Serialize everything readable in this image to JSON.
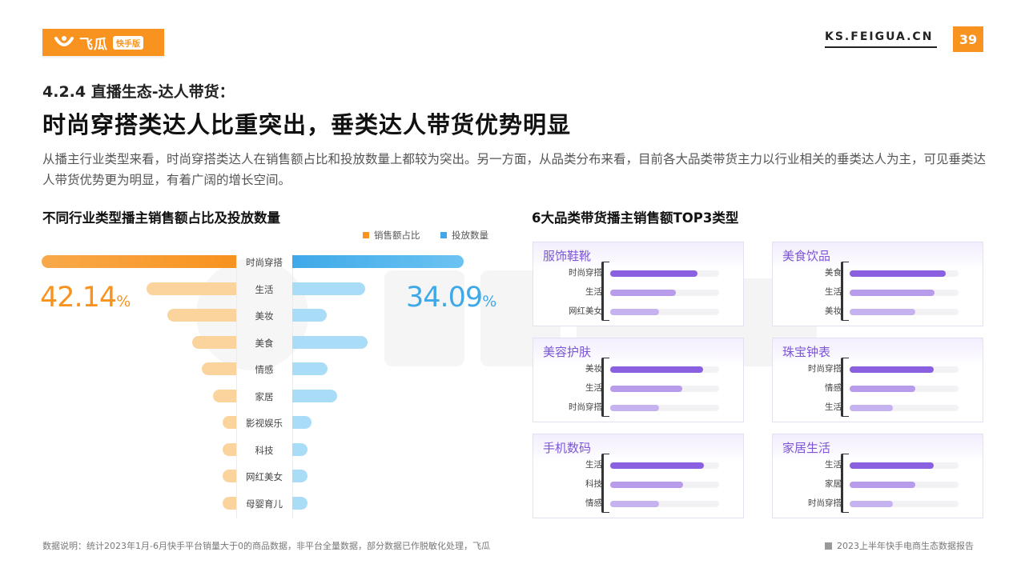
{
  "header": {
    "logo_text": "飞瓜",
    "logo_badge": "快手版",
    "site": "KS.FEIGUA.CN",
    "page_number": "39"
  },
  "section": "4.2.4 直播生态-达人带货：",
  "headline": "时尚穿搭类达人比重突出，垂类达人带货优势明显",
  "description": "从播主行业类型来看，时尚穿搭类达人在销售额占比和投放数量上都较为突出。另一方面，从品类分布来看，目前各大品类带货主力以行业相关的垂类达人为主，可见垂类达人带货优势更为明显，有着广阔的增长空间。",
  "left_chart": {
    "title": "不同行业类型播主销售额占比及投放数量",
    "legend": {
      "sales_label": "销售额占比",
      "count_label": "投放数量"
    },
    "highlight_sales_value": "42.14",
    "highlight_sales_unit": "%",
    "highlight_count_value": "34.09",
    "highlight_count_unit": "%"
  },
  "right_chart": {
    "title": "6大品类带货播主销售额TOP3类型"
  },
  "colors": {
    "orange": "#f7931e",
    "orange_light": "#fbd39c",
    "blue": "#3fa9e8",
    "blue_light": "#a9dcf7",
    "purple_dark": "#8a5fe0",
    "purple_mid": "#b99bec",
    "purple_light": "#c7b2f0"
  },
  "chart_data": [
    {
      "type": "bar",
      "title": "不同行业类型播主销售额占比及投放数量",
      "categories": [
        "时尚穿搭",
        "生活",
        "美妆",
        "美食",
        "情感",
        "家居",
        "影视娱乐",
        "科技",
        "网红美女",
        "母婴育儿"
      ],
      "series": [
        {
          "name": "销售额占比",
          "values": [
            42.14,
            19.5,
            15.0,
            9.5,
            7.5,
            5.0,
            3.0,
            3.0,
            3.0,
            3.0
          ]
        },
        {
          "name": "投放数量",
          "values": [
            34.09,
            14.5,
            6.8,
            15.0,
            7.0,
            9.0,
            3.8,
            3.0,
            3.0,
            3.0
          ]
        }
      ]
    },
    {
      "type": "bar",
      "title": "6大品类带货播主销售额TOP3类型",
      "panels": [
        {
          "name": "服饰鞋靴",
          "categories": [
            "时尚穿搭",
            "生活",
            "网红美女"
          ],
          "values": [
            0.8,
            0.6,
            0.45
          ]
        },
        {
          "name": "美食饮品",
          "categories": [
            "美食",
            "生活",
            "美妆"
          ],
          "values": [
            0.88,
            0.78,
            0.6
          ]
        },
        {
          "name": "美容护肤",
          "categories": [
            "美妆",
            "生活",
            "时尚穿搭"
          ],
          "values": [
            0.85,
            0.66,
            0.45
          ]
        },
        {
          "name": "珠宝钟表",
          "categories": [
            "时尚穿搭",
            "情感",
            "生活"
          ],
          "values": [
            0.77,
            0.6,
            0.4
          ]
        },
        {
          "name": "手机数码",
          "categories": [
            "生活",
            "科技",
            "情感"
          ],
          "values": [
            0.86,
            0.67,
            0.45
          ]
        },
        {
          "name": "家居生活",
          "categories": [
            "生活",
            "家居",
            "时尚穿搭"
          ],
          "values": [
            0.77,
            0.6,
            0.4
          ]
        }
      ]
    }
  ],
  "footer": {
    "note": "数据说明：统计2023年1月-6月快手平台销量大于0的商品数据，非平台全量数据，部分数据已作脱敏化处理，飞瓜",
    "report": "2023上半年快手电商生态数据报告"
  }
}
